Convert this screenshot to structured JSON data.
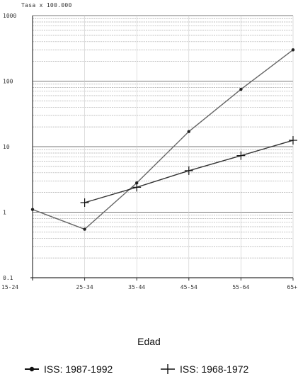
{
  "chart_data": {
    "type": "line",
    "yscale": "log",
    "y_unit_label": "Tasa x 100.000",
    "ylim": [
      0.1,
      1000
    ],
    "yticks": [
      "1000",
      "100",
      "10",
      "1",
      "0.1"
    ],
    "categories": [
      "15-24",
      "25-34",
      "35-44",
      "45-54",
      "55-64",
      "65+"
    ],
    "xlabel": "Edad",
    "grid": true,
    "legend_position": "bottom",
    "series": [
      {
        "name": "ISS: 1987-1992",
        "marker": "dot",
        "color": "#222222",
        "values": [
          1.1,
          0.55,
          2.8,
          17,
          75,
          300
        ]
      },
      {
        "name": "ISS: 1968-1972",
        "marker": "plus",
        "color": "#222222",
        "values": [
          null,
          1.4,
          2.4,
          4.3,
          7.3,
          12.5
        ]
      }
    ]
  }
}
